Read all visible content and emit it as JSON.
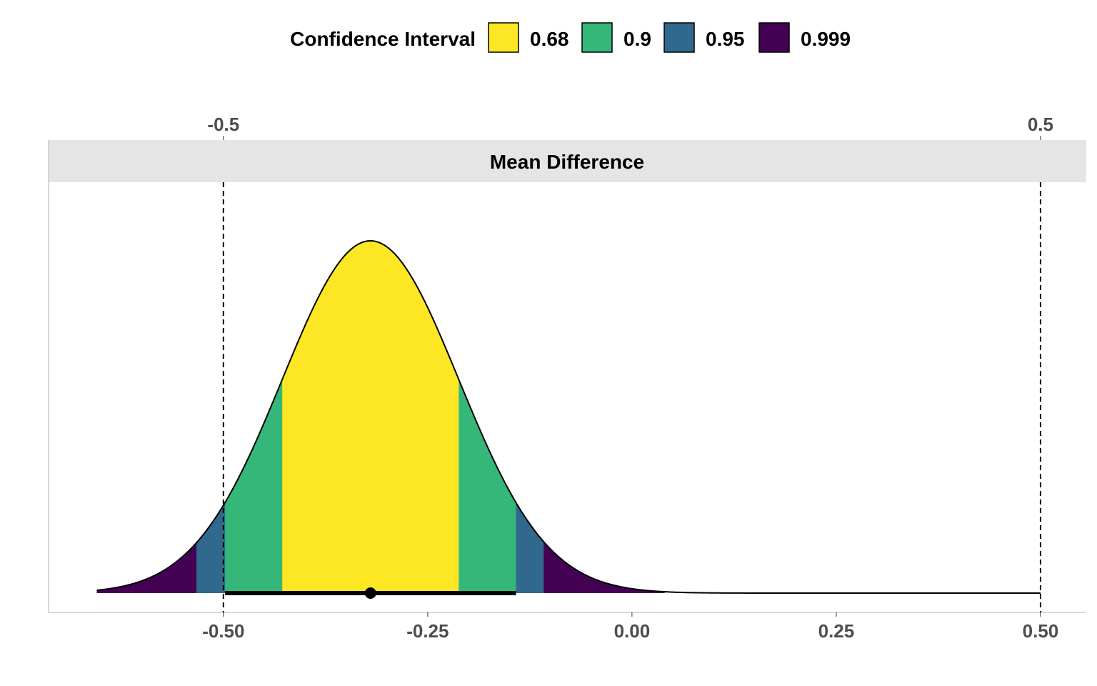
{
  "chart_data": {
    "type": "area",
    "facet_title": "Mean Difference",
    "legend": {
      "title": "Confidence Interval",
      "position": "top",
      "entries": [
        {
          "label": "0.68",
          "color": "#FDE725"
        },
        {
          "label": "0.9",
          "color": "#35B779"
        },
        {
          "label": "0.95",
          "color": "#31688E"
        },
        {
          "label": "0.999",
          "color": "#440154"
        }
      ]
    },
    "x_axis": {
      "range": [
        -0.714,
        0.556
      ],
      "ticks": [
        "-0.50",
        "-0.25",
        "0.00",
        "0.25",
        "0.50"
      ],
      "tick_values": [
        -0.5,
        -0.25,
        0.0,
        0.25,
        0.5
      ]
    },
    "secondary_x_axis": {
      "position": "top",
      "ticks": [
        "-0.5",
        "0.5"
      ],
      "tick_values": [
        -0.5,
        0.5
      ]
    },
    "equivalence_bounds": [
      -0.5,
      0.5
    ],
    "distribution": {
      "shape": "normal",
      "mean": -0.32,
      "sd": 0.108,
      "x_min": -0.655,
      "x_max": 0.5
    },
    "intervals": [
      {
        "level": "0.999",
        "lower": -0.655,
        "upper": 0.04,
        "color": "#440154"
      },
      {
        "level": "0.95",
        "lower": -0.533,
        "upper": -0.108,
        "color": "#31688E"
      },
      {
        "level": "0.9",
        "lower": -0.498,
        "upper": -0.142,
        "color": "#35B779"
      },
      {
        "level": "0.68",
        "lower": -0.428,
        "upper": -0.212,
        "color": "#FDE725"
      }
    ],
    "point_estimate": -0.32,
    "interval_bar": {
      "lower": -0.498,
      "upper": -0.142
    },
    "grid": false
  }
}
